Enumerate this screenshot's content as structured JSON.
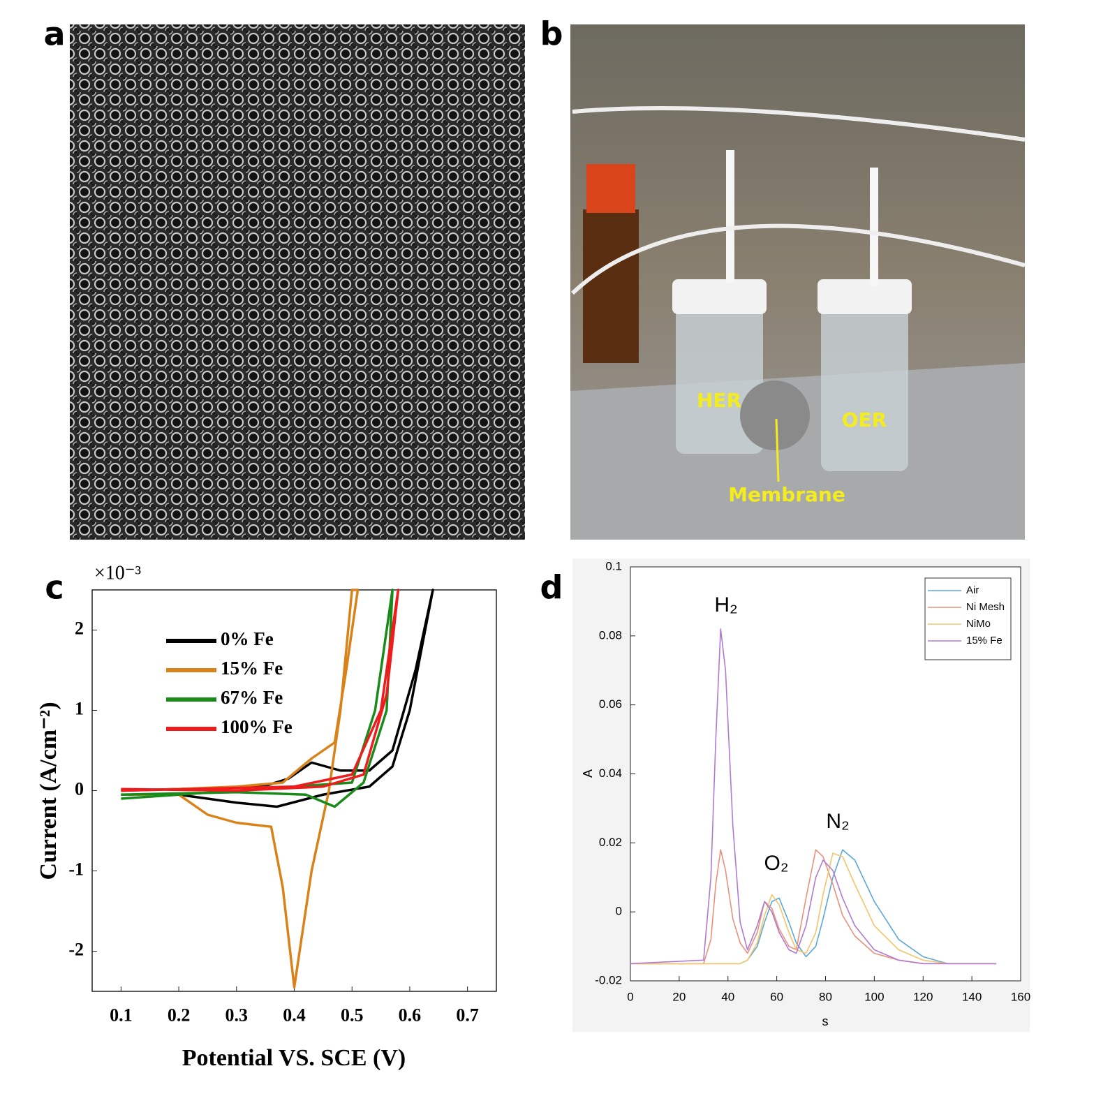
{
  "panels": {
    "a": {
      "label": "a"
    },
    "b": {
      "label": "b",
      "annotations": [
        "HER",
        "OER",
        "Membrane"
      ]
    }
  },
  "chart_data": [
    {
      "type": "line",
      "panel_label": "c",
      "x_label": "Potential VS. SCE (V)",
      "y_label": "Current (A/cm⁻²)",
      "y_multiplier": "×10⁻³",
      "xlim": [
        0.05,
        0.75
      ],
      "xticks": [
        0.1,
        0.2,
        0.3,
        0.4,
        0.5,
        0.6,
        0.7
      ],
      "ylim": [
        -2.5,
        2.5
      ],
      "yticks": [
        -2,
        -1,
        0,
        1,
        2
      ],
      "legend": "upper-left",
      "grid": false,
      "series": [
        {
          "name": "0% Fe",
          "color": "#000000",
          "x": [
            0.1,
            0.2,
            0.3,
            0.35,
            0.39,
            0.43,
            0.48,
            0.53,
            0.57,
            0.61,
            0.64,
            0.6,
            0.57,
            0.53,
            0.45,
            0.37,
            0.3,
            0.2,
            0.1
          ],
          "values": [
            0.0,
            0.02,
            0.04,
            0.06,
            0.15,
            0.35,
            0.25,
            0.25,
            0.5,
            1.5,
            2.5,
            1.0,
            0.3,
            0.05,
            -0.05,
            -0.2,
            -0.15,
            -0.05,
            -0.05
          ]
        },
        {
          "name": "15% Fe",
          "color": "#d9821a",
          "x": [
            0.1,
            0.2,
            0.3,
            0.38,
            0.43,
            0.47,
            0.49,
            0.51,
            0.5,
            0.48,
            0.46,
            0.43,
            0.4,
            0.38,
            0.36,
            0.3,
            0.25,
            0.2,
            0.1
          ],
          "values": [
            0.0,
            0.02,
            0.05,
            0.1,
            0.4,
            0.6,
            1.5,
            2.5,
            2.5,
            1.0,
            0.0,
            -1.0,
            -2.45,
            -1.2,
            -0.45,
            -0.4,
            -0.3,
            -0.05,
            -0.05
          ]
        },
        {
          "name": "67% Fe",
          "color": "#1a8a1a",
          "x": [
            0.1,
            0.3,
            0.5,
            0.54,
            0.57,
            0.56,
            0.52,
            0.47,
            0.42,
            0.3,
            0.1
          ],
          "values": [
            -0.1,
            0.0,
            0.1,
            1.0,
            2.5,
            1.0,
            0.1,
            -0.2,
            -0.05,
            -0.02,
            -0.05
          ]
        },
        {
          "name": "100% Fe",
          "color": "#ee1c1c",
          "x": [
            0.1,
            0.4,
            0.5,
            0.55,
            0.58,
            0.56,
            0.52,
            0.45,
            0.3,
            0.1
          ],
          "values": [
            0.0,
            0.05,
            0.2,
            1.0,
            2.5,
            1.2,
            0.2,
            0.05,
            0.0,
            0.02
          ]
        }
      ]
    },
    {
      "type": "line",
      "panel_label": "d",
      "x_label": "s",
      "y_label": "A",
      "xlim": [
        0,
        160
      ],
      "xticks": [
        0,
        20,
        40,
        60,
        80,
        100,
        120,
        140,
        160
      ],
      "ylim": [
        -0.02,
        0.1
      ],
      "yticks": [
        -0.02,
        0,
        0.02,
        0.04,
        0.06,
        0.08,
        0.1
      ],
      "legend": "upper-right",
      "grid": false,
      "annotations": [
        "H₂",
        "O₂",
        "N₂"
      ],
      "x": [
        0,
        30,
        33,
        35,
        37,
        39,
        42,
        45,
        48,
        52,
        55,
        58,
        61,
        65,
        68,
        72,
        76,
        79,
        83,
        87,
        92,
        100,
        110,
        120,
        130,
        150
      ],
      "series": [
        {
          "name": "Air",
          "color": "#5aa7d8",
          "values": [
            -0.015,
            -0.015,
            -0.015,
            -0.015,
            -0.015,
            -0.015,
            -0.015,
            -0.015,
            -0.014,
            -0.01,
            -0.003,
            0.003,
            0.004,
            -0.003,
            -0.009,
            -0.013,
            -0.01,
            -0.002,
            0.01,
            0.018,
            0.015,
            0.003,
            -0.008,
            -0.013,
            -0.015,
            -0.015
          ]
        },
        {
          "name": "Ni Mesh",
          "color": "#e8917a",
          "values": [
            -0.015,
            -0.015,
            -0.008,
            0.008,
            0.018,
            0.012,
            -0.002,
            -0.009,
            -0.012,
            -0.006,
            0.003,
            0.001,
            -0.005,
            -0.01,
            -0.011,
            0.004,
            0.018,
            0.016,
            0.008,
            -0.001,
            -0.007,
            -0.012,
            -0.014,
            -0.015,
            -0.015,
            -0.015
          ]
        },
        {
          "name": "NiMo",
          "color": "#f3c46a",
          "values": [
            -0.015,
            -0.015,
            -0.015,
            -0.015,
            -0.015,
            -0.015,
            -0.015,
            -0.015,
            -0.014,
            -0.009,
            -0.001,
            0.005,
            0.002,
            -0.006,
            -0.011,
            -0.012,
            -0.006,
            0.005,
            0.017,
            0.016,
            0.008,
            -0.004,
            -0.011,
            -0.014,
            -0.015,
            -0.015
          ]
        },
        {
          "name": "15% Fe",
          "color": "#b07ad0",
          "values": [
            -0.015,
            -0.014,
            0.01,
            0.05,
            0.082,
            0.07,
            0.025,
            -0.003,
            -0.011,
            -0.004,
            0.003,
            0.0,
            -0.006,
            -0.011,
            -0.012,
            -0.004,
            0.01,
            0.015,
            0.012,
            0.004,
            -0.004,
            -0.011,
            -0.014,
            -0.015,
            -0.015,
            -0.015
          ]
        }
      ]
    }
  ]
}
